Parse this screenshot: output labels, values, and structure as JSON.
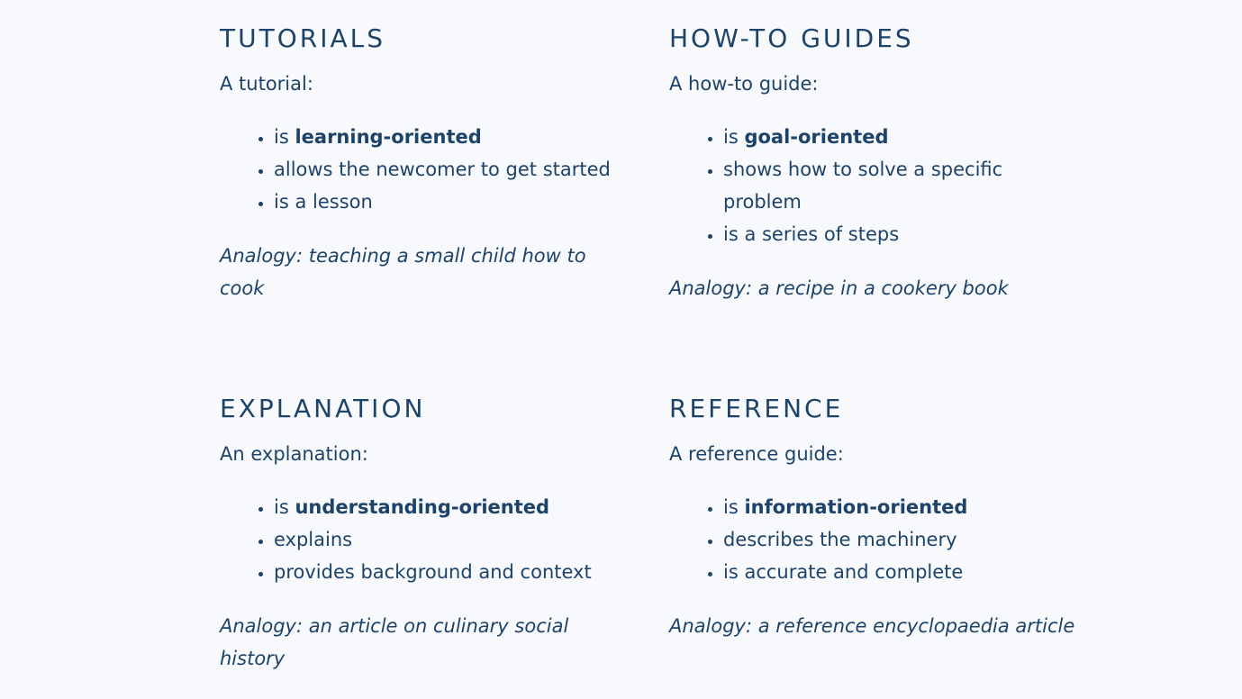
{
  "sections": {
    "tutorials": {
      "heading": "TUTORIALS",
      "intro": "A tutorial:",
      "bullets": [
        {
          "prefix": "is ",
          "bold": "learning-oriented",
          "text": ""
        },
        {
          "prefix": "",
          "bold": "",
          "text": "allows the newcomer to get started"
        },
        {
          "prefix": "",
          "bold": "",
          "text": "is a lesson"
        }
      ],
      "analogy": "Analogy: teaching a small child how to cook"
    },
    "howto": {
      "heading": "HOW-TO GUIDES",
      "intro": "A how-to guide:",
      "bullets": [
        {
          "prefix": "is ",
          "bold": "goal-oriented",
          "text": ""
        },
        {
          "prefix": "",
          "bold": "",
          "text": "shows how to solve a specific problem"
        },
        {
          "prefix": "",
          "bold": "",
          "text": "is a series of steps"
        }
      ],
      "analogy": "Analogy: a recipe in a cookery book"
    },
    "explanation": {
      "heading": "EXPLANATION",
      "intro": "An explanation:",
      "bullets": [
        {
          "prefix": "is ",
          "bold": "understanding-oriented",
          "text": ""
        },
        {
          "prefix": "",
          "bold": "",
          "text": "explains"
        },
        {
          "prefix": "",
          "bold": "",
          "text": "provides background and context"
        }
      ],
      "analogy": "Analogy: an article on culinary social history"
    },
    "reference": {
      "heading": "REFERENCE",
      "intro": "A reference guide:",
      "bullets": [
        {
          "prefix": "is ",
          "bold": "information-oriented",
          "text": ""
        },
        {
          "prefix": "",
          "bold": "",
          "text": "describes the machinery"
        },
        {
          "prefix": "",
          "bold": "",
          "text": "is accurate and complete"
        }
      ],
      "analogy": "Analogy: a reference encyclopaedia article"
    }
  }
}
